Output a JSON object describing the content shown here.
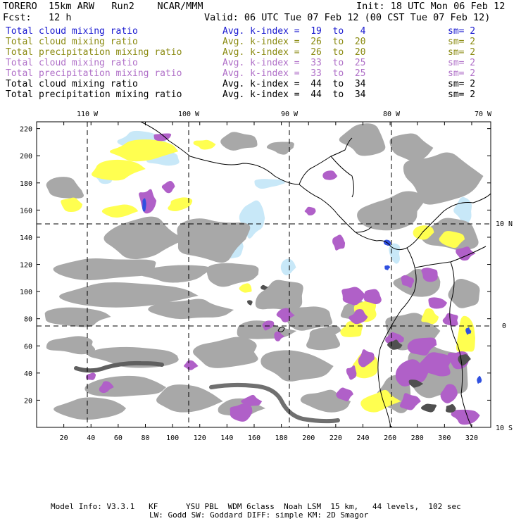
{
  "header": {
    "model": "TORERO  15km ARW   Run2    NCAR/MMM",
    "init": "Init: 18 UTC Mon 06 Feb 12",
    "fcst": "Fcst:   12 h",
    "valid": "Valid: 06 UTC Tue 07 Feb 12 (00 CST Tue 07 Feb 12)"
  },
  "legend": [
    {
      "field": "Total cloud mixing ratio",
      "avg": "Avg. k-index =  19  to   4",
      "sm": "sm= 2",
      "color": "#1a1ad0"
    },
    {
      "field": "Total cloud mixing ratio",
      "avg": "Avg. k-index =  26  to  20",
      "sm": "sm= 2",
      "color": "#8a8a10"
    },
    {
      "field": "Total precipitation mixing ratio",
      "avg": "Avg. k-index =  26  to  20",
      "sm": "sm= 2",
      "color": "#8a8a10"
    },
    {
      "field": "Total cloud mixing ratio",
      "avg": "Avg. k-index =  33  to  25",
      "sm": "sm= 2",
      "color": "#b070c8"
    },
    {
      "field": "Total precipitation mixing ratio",
      "avg": "Avg. k-index =  33  to  25",
      "sm": "sm= 2",
      "color": "#b070c8"
    },
    {
      "field": "Total cloud mixing ratio",
      "avg": "Avg. k-index =  44  to  34",
      "sm": "sm= 2",
      "color": "#000000"
    },
    {
      "field": "Total precipitation mixing ratio",
      "avg": "Avg. k-index =  44  to  34",
      "sm": "sm= 2",
      "color": "#000000"
    }
  ],
  "map": {
    "lon_labels": [
      "110 W",
      "100 W",
      "90 W",
      "80 W",
      "70 W"
    ],
    "lat_labels": [
      "10 N",
      "0",
      "10 S"
    ],
    "x_ticks": [
      "20",
      "40",
      "60",
      "80",
      "100",
      "120",
      "140",
      "160",
      "180",
      "200",
      "220",
      "240",
      "260",
      "280",
      "300",
      "320"
    ],
    "y_ticks": [
      "20",
      "40",
      "60",
      "80",
      "100",
      "120",
      "140",
      "160",
      "180",
      "200",
      "220"
    ],
    "colors": {
      "gray": "#a8a8a8",
      "darkgray": "#505050",
      "yellow": "#ffff50",
      "purple": "#b060c8",
      "lightblue": "#c8e8f8",
      "blue": "#3050e0"
    }
  },
  "footer": {
    "line1": "Model Info: V3.3.1   KF      YSU PBL  WDM 6class  Noah LSM  15 km,   44 levels,  102 sec",
    "line2": "LW: Godd SW: Goddard DIFF: simple KM: 2D Smagor"
  }
}
